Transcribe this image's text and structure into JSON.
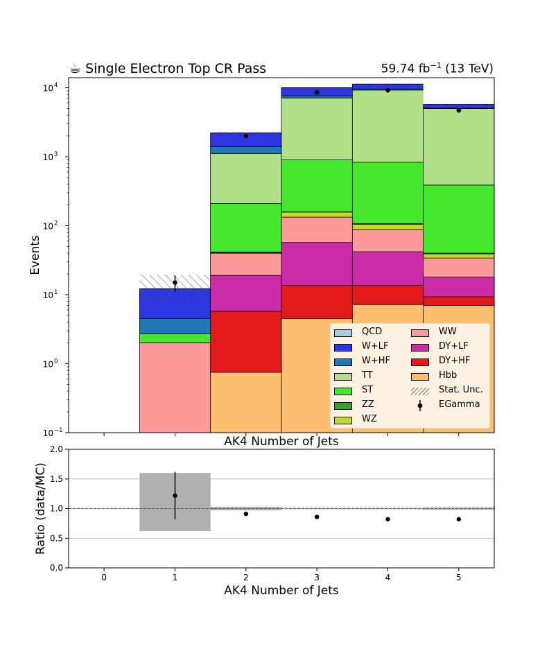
{
  "header": {
    "title": "☕ Single Electron Top CR Pass",
    "lumi_value": "59.74 fb",
    "lumi_exp": "−1",
    "energy": "(13 TeV)"
  },
  "chart_data": [
    {
      "type": "bar",
      "stacked": true,
      "log_y": true,
      "xlabel": "AK4 Number of Jets",
      "ylabel": "Events",
      "xlim": [
        -0.5,
        5.5
      ],
      "ylim": [
        0.1,
        14000
      ],
      "x": [
        0,
        1,
        2,
        3,
        4,
        5
      ],
      "ytick_labels": [
        "10",
        "10",
        "10",
        "10",
        "10",
        "10"
      ],
      "ytick_exponents": [
        "−1",
        "0",
        "1",
        "2",
        "3",
        "4"
      ],
      "legend_position": "lower-right",
      "series": [
        {
          "name": "Hbb",
          "color": "#fdbf6f",
          "values": [
            0,
            0,
            0.75,
            4.5,
            7.2,
            7
          ]
        },
        {
          "name": "DY+HF",
          "color": "#e31a1c",
          "values": [
            0,
            0,
            5.0,
            9.2,
            6.5,
            2.3
          ]
        },
        {
          "name": "DY+LF",
          "color": "#cc2ba8",
          "values": [
            0,
            0,
            13.3,
            43.3,
            28.3,
            8.7
          ]
        },
        {
          "name": "WW",
          "color": "#fb9a99",
          "values": [
            0,
            2.0,
            20.9,
            76.0,
            46.0,
            16.0
          ]
        },
        {
          "name": "WZ",
          "color": "#c7da2a",
          "values": [
            0,
            0,
            0.8,
            24.0,
            17.0,
            5.0
          ]
        },
        {
          "name": "ZZ",
          "color": "#33a02c",
          "values": [
            0,
            0,
            0.6,
            2.0,
            2.0,
            1.0
          ]
        },
        {
          "name": "ST",
          "color": "#45e82c",
          "values": [
            0,
            0.7,
            168.4,
            745.0,
            725.0,
            348.0
          ]
        },
        {
          "name": "TT",
          "color": "#b2df8a",
          "values": [
            0,
            0,
            900.0,
            6200.0,
            8400.0,
            4600.0
          ]
        },
        {
          "name": "W+HF",
          "color": "#1f78b4",
          "values": [
            0,
            1.8,
            290.0,
            540.0,
            270.0,
            60.0
          ]
        },
        {
          "name": "W+LF",
          "color": "#2c36e0",
          "values": [
            0,
            7.7,
            810.0,
            2400.0,
            1800.0,
            680.0
          ]
        },
        {
          "name": "QCD",
          "color": "#a6cee3",
          "values": [
            0,
            0,
            0,
            0,
            0,
            0
          ]
        }
      ],
      "stat_unc": {
        "name": "Stat. Unc.",
        "low": [
          0,
          7.5,
          2150,
          9600,
          10900,
          5600
        ],
        "high": [
          0,
          19.5,
          2280,
          9900,
          11300,
          5800
        ]
      },
      "data_points": {
        "name": "EGamma",
        "x": [
          1,
          2,
          3,
          4,
          5
        ],
        "y": [
          15,
          2000,
          8600,
          9200,
          4700
        ],
        "err_low": [
          4,
          45,
          93,
          96,
          69
        ],
        "err_high": [
          4,
          45,
          93,
          96,
          69
        ]
      }
    },
    {
      "type": "scatter",
      "xlabel": "AK4 Number of Jets",
      "ylabel": "Ratio (data/MC)",
      "xlim": [
        -0.5,
        5.5
      ],
      "ylim": [
        0.0,
        2.0
      ],
      "xticks": [
        "0",
        "1",
        "2",
        "3",
        "4",
        "5"
      ],
      "yticks": [
        "0.0",
        "0.5",
        "1.0",
        "1.5",
        "2.0"
      ],
      "grid": true,
      "reference_line": 1.0,
      "x": [
        1,
        2,
        3,
        4,
        5
      ],
      "ratio": [
        1.22,
        0.91,
        0.86,
        0.82,
        0.82
      ],
      "ratio_err": [
        0.4,
        0.02,
        0.01,
        0.01,
        0.01
      ],
      "unc_band_low": [
        0,
        0.62,
        0.97,
        0.99,
        0.99,
        0.98
      ],
      "unc_band_high": [
        0,
        1.6,
        1.03,
        1.01,
        1.01,
        1.02
      ]
    }
  ]
}
